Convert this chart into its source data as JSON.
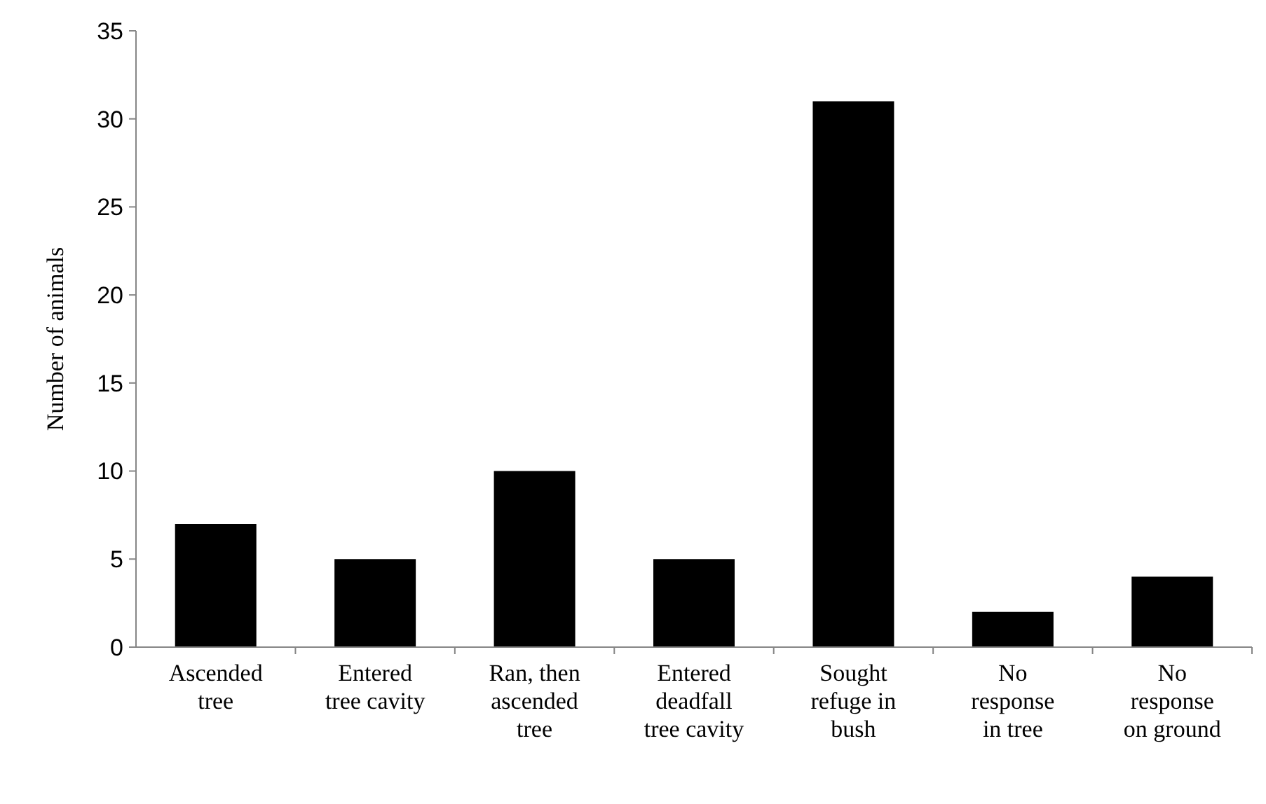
{
  "chart_data": {
    "type": "bar",
    "ylabel": "Number of animals",
    "categories": [
      "Ascended tree",
      "Entered tree cavity",
      "Ran, then ascended tree",
      "Entered deadfall tree cavity",
      "Sought refuge in bush",
      "No response in tree",
      "No response on ground"
    ],
    "values": [
      7,
      5,
      10,
      5,
      31,
      2,
      4
    ],
    "color": "#000000",
    "ylim": [
      0,
      35
    ],
    "yticks": [
      0,
      5,
      10,
      15,
      20,
      25,
      30,
      35
    ],
    "grid": false
  }
}
